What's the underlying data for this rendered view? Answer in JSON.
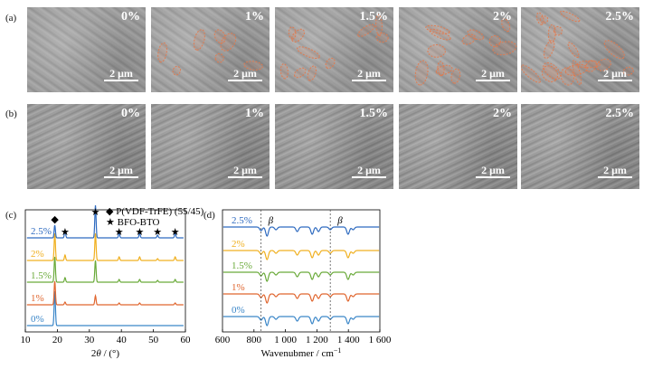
{
  "panel_labels": {
    "a": "(a)",
    "b": "(b)",
    "c": "(c)",
    "d": "(d)"
  },
  "sem": {
    "row_a": [
      "0%",
      "1%",
      "1.5%",
      "2%",
      "2.5%"
    ],
    "row_b": [
      "0%",
      "1%",
      "1.5%",
      "2%",
      "2.5%"
    ],
    "scale_bar": "2 μm",
    "particle_marks": [
      0,
      7,
      10,
      12,
      18
    ]
  },
  "colors": {
    "0%": "#3a86c8",
    "1%": "#e0662f",
    "1.5%": "#6aaa3a",
    "2%": "#f0b020",
    "2.5%": "#2f6bc0",
    "dashed_circles": "#e07b50"
  },
  "chart_data": [
    {
      "type": "line",
      "panel": "(c)",
      "xlabel": "2θ / (°)",
      "xlabel_parts": {
        "pre": "2",
        "var": "θ",
        "post": " / (°)"
      },
      "xlim": [
        10,
        60
      ],
      "xticks": [
        "10",
        "20",
        "30",
        "40",
        "50",
        "60"
      ],
      "legend": [
        {
          "marker": "◆",
          "label": "P(VDF-TrFE) (55/45)"
        },
        {
          "marker": "★",
          "label": "BFO-BTO"
        }
      ],
      "series": [
        {
          "name": "0%",
          "peaks": [
            {
              "x": 19.2,
              "h": 38
            }
          ]
        },
        {
          "name": "1%",
          "peaks": [
            {
              "x": 19.2,
              "h": 26
            },
            {
              "x": 22.4,
              "h": 3
            },
            {
              "x": 31.9,
              "h": 10
            },
            {
              "x": 39.3,
              "h": 2
            },
            {
              "x": 45.7,
              "h": 2
            },
            {
              "x": 56.8,
              "h": 2
            }
          ]
        },
        {
          "name": "1.5%",
          "peaks": [
            {
              "x": 19.2,
              "h": 28
            },
            {
              "x": 22.4,
              "h": 5
            },
            {
              "x": 31.9,
              "h": 24
            },
            {
              "x": 39.3,
              "h": 3
            },
            {
              "x": 45.7,
              "h": 3
            },
            {
              "x": 51.3,
              "h": 2
            },
            {
              "x": 56.8,
              "h": 3
            }
          ]
        },
        {
          "name": "2%",
          "peaks": [
            {
              "x": 19.2,
              "h": 30
            },
            {
              "x": 22.4,
              "h": 6
            },
            {
              "x": 31.9,
              "h": 30
            },
            {
              "x": 39.3,
              "h": 4
            },
            {
              "x": 45.7,
              "h": 4
            },
            {
              "x": 51.3,
              "h": 2
            },
            {
              "x": 56.8,
              "h": 4
            }
          ]
        },
        {
          "name": "2.5%",
          "peaks": [
            {
              "x": 19.2,
              "h": 14
            },
            {
              "x": 22.4,
              "h": 8
            },
            {
              "x": 31.9,
              "h": 36
            },
            {
              "x": 39.3,
              "h": 5
            },
            {
              "x": 45.7,
              "h": 5
            },
            {
              "x": 51.3,
              "h": 3
            },
            {
              "x": 56.8,
              "h": 5
            }
          ]
        }
      ],
      "peak_markers": [
        {
          "x": 19.2,
          "marker": "◆"
        },
        {
          "x": 22.4,
          "marker": "★"
        },
        {
          "x": 31.9,
          "marker": "★"
        },
        {
          "x": 39.3,
          "marker": "★"
        },
        {
          "x": 45.7,
          "marker": "★"
        },
        {
          "x": 51.3,
          "marker": "★"
        },
        {
          "x": 56.8,
          "marker": "★"
        }
      ]
    },
    {
      "type": "line",
      "panel": "(d)",
      "xlabel": "Wavenubmer / cm⁻¹",
      "xlabel_parts": {
        "pre": "Wavenubmer / cm",
        "sup": "−1"
      },
      "xlim": [
        600,
        1600
      ],
      "xticks": [
        "600",
        "800",
        "1 000",
        "1 200",
        "1 400",
        "1 600"
      ],
      "beta_label": "β",
      "beta_lines": [
        845,
        1285
      ],
      "series": [
        {
          "name": "0%"
        },
        {
          "name": "1%"
        },
        {
          "name": "1.5%"
        },
        {
          "name": "2%"
        },
        {
          "name": "2.5%"
        }
      ],
      "bands": [
        {
          "x": 845,
          "d": 4
        },
        {
          "x": 883,
          "d": 10
        },
        {
          "x": 940,
          "d": 3
        },
        {
          "x": 1075,
          "d": 5
        },
        {
          "x": 1170,
          "d": 8
        },
        {
          "x": 1210,
          "d": 5
        },
        {
          "x": 1285,
          "d": 3
        },
        {
          "x": 1398,
          "d": 8
        },
        {
          "x": 1430,
          "d": 3
        }
      ]
    }
  ]
}
